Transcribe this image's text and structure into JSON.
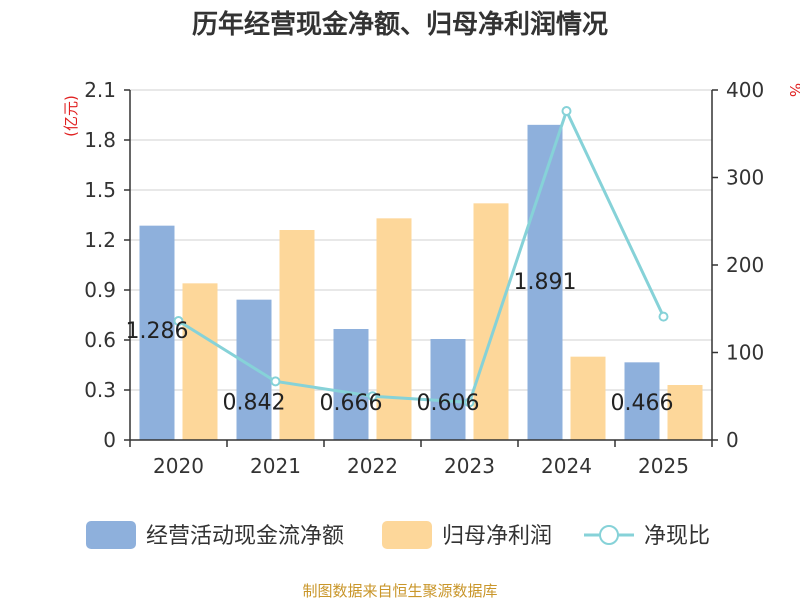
{
  "chart_data": {
    "type": "bar",
    "title": "历年经营现金净额、归母净利润情况",
    "categories": [
      "2020",
      "2021",
      "2022",
      "2023",
      "2024",
      "2025"
    ],
    "series": [
      {
        "name": "经营活动现金流净额",
        "kind": "bar",
        "axis": "left",
        "color": "#8eb0dc",
        "values": [
          1.286,
          0.842,
          0.666,
          0.606,
          1.891,
          0.466
        ],
        "labels": [
          "1.286",
          "0.842",
          "0.666",
          "0.606",
          "1.891",
          "0.466"
        ]
      },
      {
        "name": "归母净利润",
        "kind": "bar",
        "axis": "left",
        "color": "#fdd79a",
        "values": [
          0.94,
          1.26,
          1.33,
          1.42,
          0.5,
          0.33
        ]
      },
      {
        "name": "净现比",
        "kind": "line",
        "axis": "right",
        "color": "#86d2d8",
        "values": [
          136,
          67,
          50,
          43,
          376,
          141
        ]
      }
    ],
    "y_left": {
      "unit": "(亿元)",
      "min": 0,
      "max": 2.1,
      "ticks": [
        "0",
        "0.3",
        "0.6",
        "0.9",
        "1.2",
        "1.5",
        "1.8",
        "2.1"
      ]
    },
    "y_right": {
      "unit": "%",
      "min": 0,
      "max": 400,
      "ticks": [
        "0",
        "100",
        "200",
        "300",
        "400"
      ]
    },
    "grid": true,
    "legend_position": "bottom"
  },
  "footer": {
    "source": "制图数据来自恒生聚源数据库"
  }
}
